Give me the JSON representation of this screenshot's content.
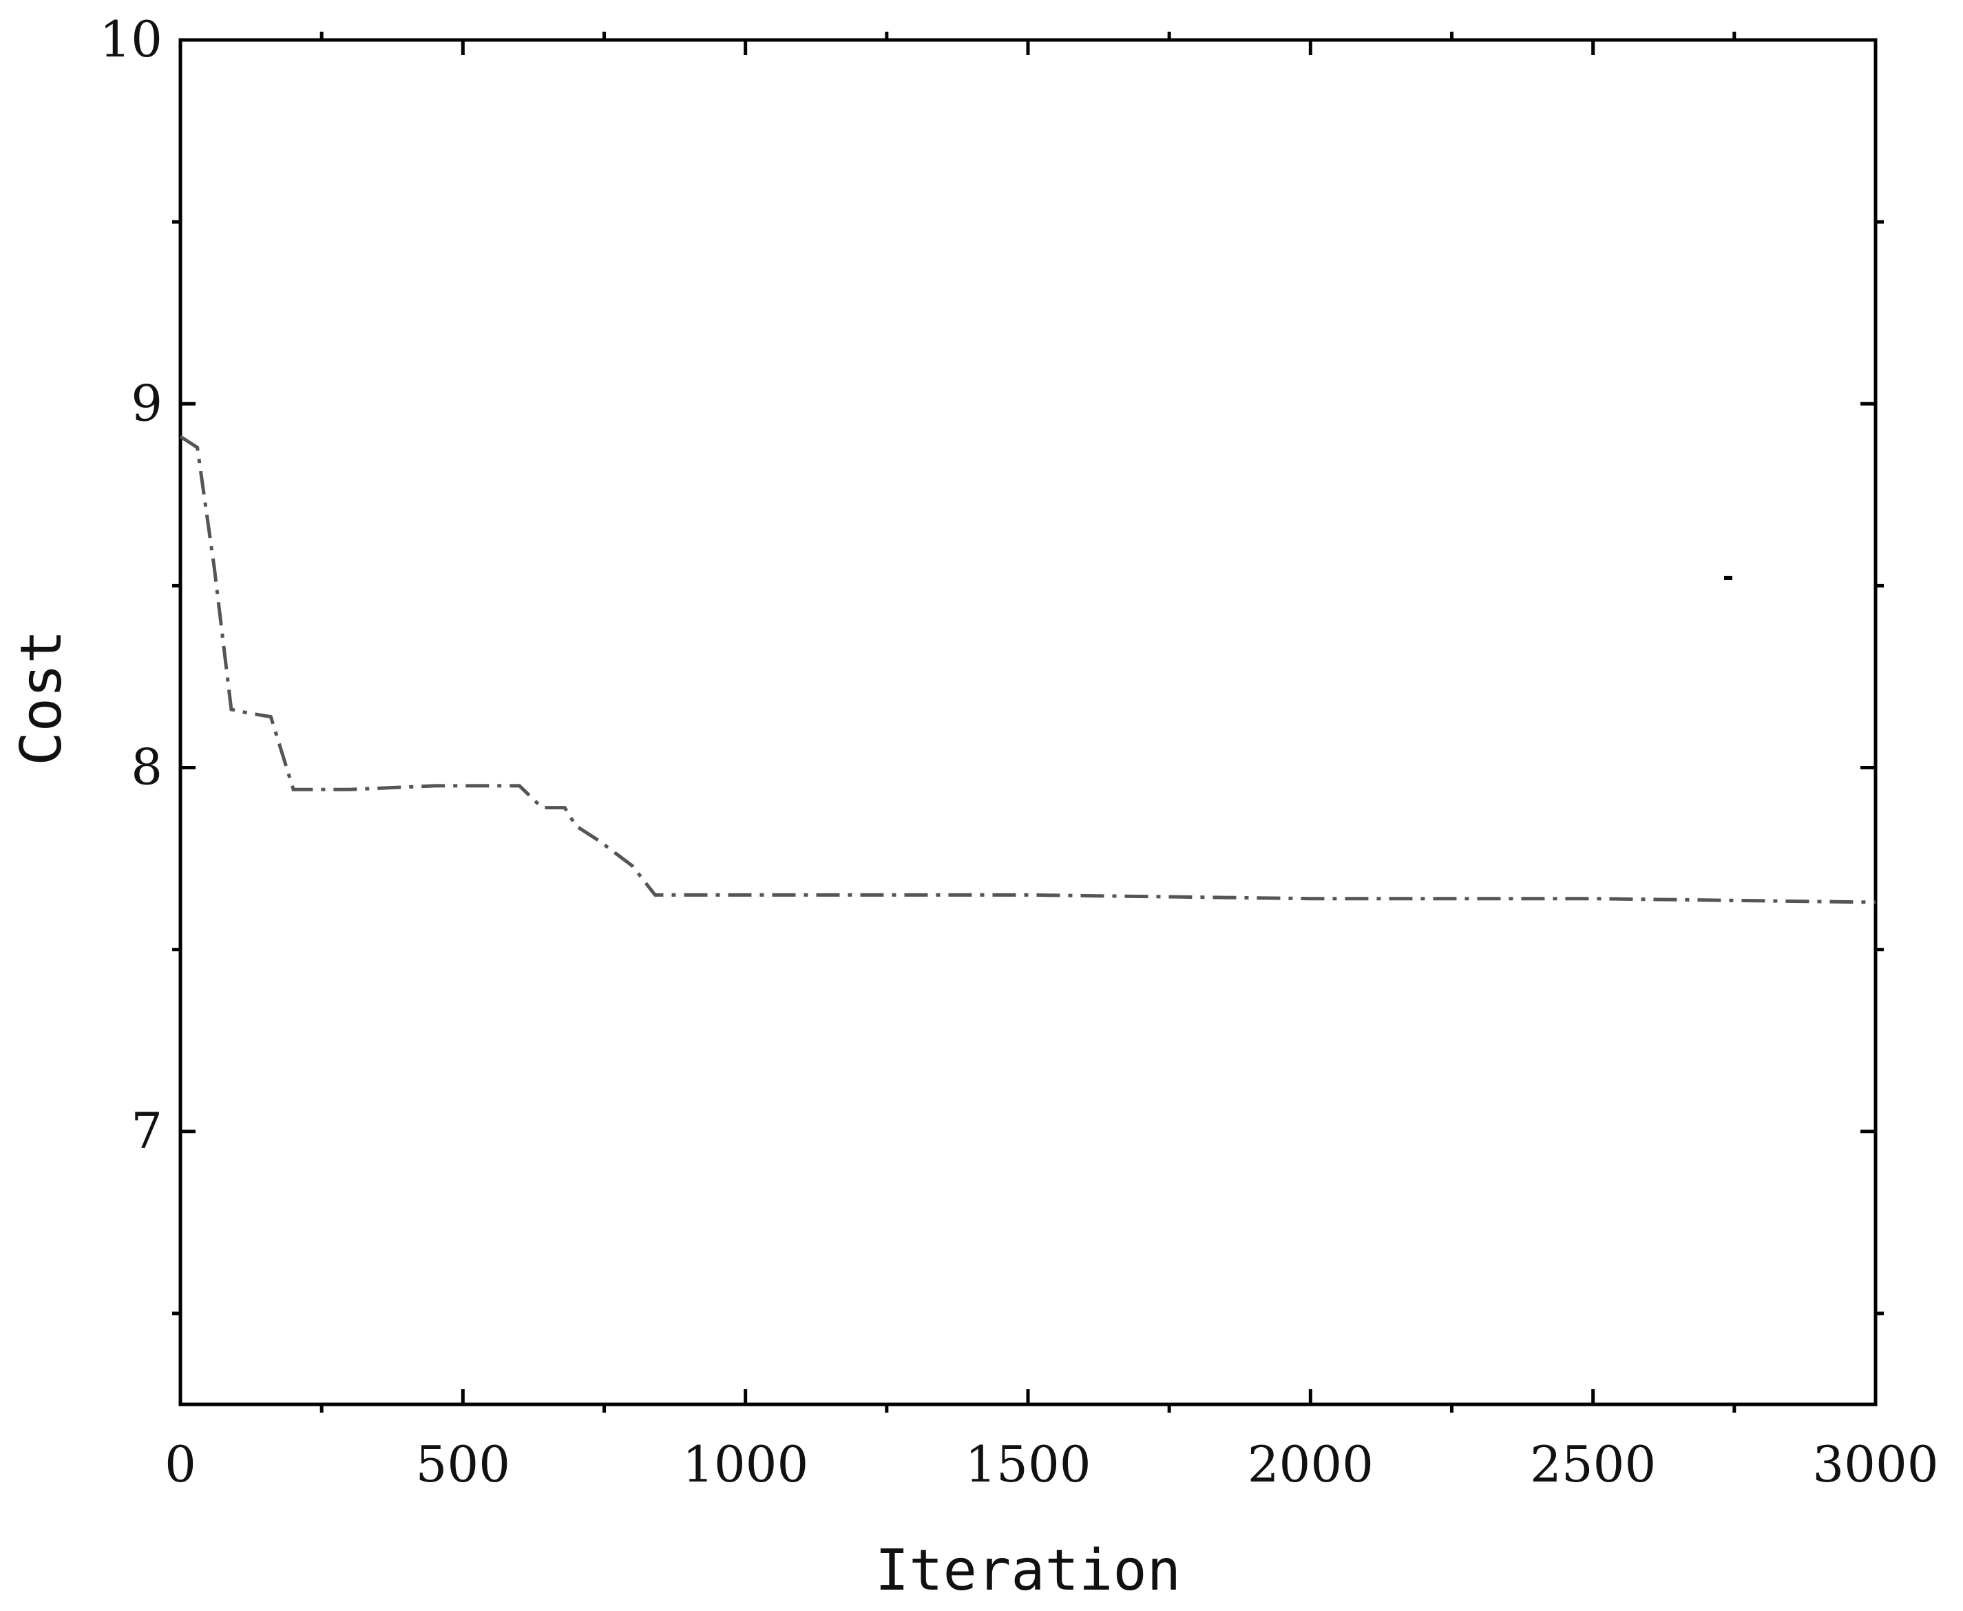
{
  "chart_data": {
    "type": "line",
    "title": "",
    "xlabel": "Iteration",
    "ylabel": "Cost",
    "xlim": [
      0,
      3000
    ],
    "ylim": [
      6.25,
      10
    ],
    "x_ticks": [
      0,
      500,
      1000,
      1500,
      2000,
      2500,
      3000
    ],
    "x_tick_labels": [
      "0",
      "500",
      "1000",
      "1500",
      "2000",
      "2500",
      "3000"
    ],
    "x_minor_ticks": [
      250,
      750,
      1250,
      1750,
      2250,
      2750
    ],
    "y_ticks": [
      7,
      8,
      9,
      10
    ],
    "y_tick_labels": [
      "7",
      "8",
      "9",
      "10"
    ],
    "y_minor_ticks": [
      6.5,
      7.5,
      8.5,
      9.5
    ],
    "grid": false,
    "legend": "none",
    "series": [
      {
        "color": "#555555",
        "x": [
          0,
          30,
          60,
          90,
          120,
          160,
          200,
          300,
          450,
          600,
          640,
          680,
          700,
          740,
          800,
          840,
          900,
          1000,
          1500,
          2000,
          2500,
          3000
        ],
        "y": [
          8.91,
          8.88,
          8.55,
          8.16,
          8.15,
          8.14,
          7.94,
          7.94,
          7.95,
          7.95,
          7.89,
          7.89,
          7.84,
          7.8,
          7.73,
          7.65,
          7.65,
          7.65,
          7.65,
          7.64,
          7.64,
          7.63
        ]
      }
    ]
  }
}
